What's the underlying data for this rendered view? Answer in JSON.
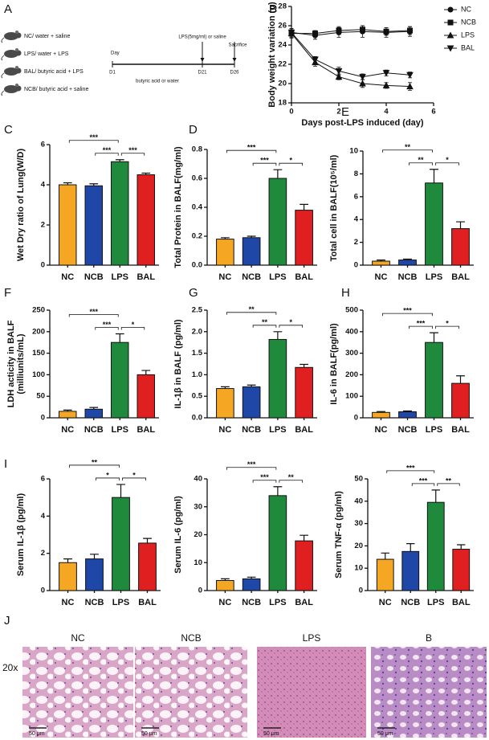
{
  "schematic": {
    "panel": "A",
    "groups": [
      "NC/ water + saline",
      "LPS/ water + LPS",
      "BAL/ butyric acid + LPS",
      "NCB/ butyric acid + saline"
    ],
    "day": "Day",
    "days": [
      "D1",
      "D21",
      "D26"
    ],
    "injection": "LPS(5mg/ml) or saline",
    "sacrifice": "Sacrifice",
    "treatment": "butyric acid or water"
  },
  "chart_data": [
    {
      "type": "line",
      "panel": "B",
      "xlabel": "Days post-LPS induced (day)",
      "ylabel": "Body weight variation (g)",
      "x": [
        0,
        1,
        2,
        3,
        4,
        5
      ],
      "xlim": [
        0,
        6
      ],
      "xticks": [
        0,
        2,
        4,
        6
      ],
      "ylim": [
        18,
        28
      ],
      "yticks": [
        18,
        20,
        22,
        24,
        26,
        28
      ],
      "legend": "right",
      "series": [
        {
          "name": "NC",
          "marker": "circle",
          "color": "#111111",
          "values": [
            25.3,
            25.0,
            25.3,
            25.4,
            25.3,
            25.4
          ],
          "errors": [
            0.4,
            0.4,
            0.5,
            0.6,
            0.5,
            0.5
          ]
        },
        {
          "name": "NCB",
          "marker": "square",
          "color": "#111111",
          "values": [
            25.2,
            25.2,
            25.5,
            25.6,
            25.4,
            25.5
          ],
          "errors": [
            0.4,
            0.3,
            0.4,
            0.4,
            0.4,
            0.4
          ]
        },
        {
          "name": "LPS",
          "marker": "triangle-up",
          "color": "#111111",
          "values": [
            25.2,
            22.2,
            20.7,
            20.0,
            19.8,
            19.7
          ],
          "errors": [
            0.5,
            0.4,
            0.3,
            0.4,
            0.3,
            0.4
          ]
        },
        {
          "name": "BAL",
          "marker": "triangle-down",
          "color": "#111111",
          "values": [
            25.3,
            22.5,
            21.3,
            20.7,
            21.1,
            20.9
          ],
          "errors": [
            0.4,
            0.3,
            0.4,
            0.3,
            0.3,
            0.3
          ]
        }
      ]
    },
    {
      "type": "bar",
      "panel": "C",
      "ylabel": "Wet Dry ratio of Lung(W/D)",
      "categories": [
        "NC",
        "NCB",
        "LPS",
        "BAL"
      ],
      "colors": [
        "#f5a623",
        "#1f47a8",
        "#1f8a3c",
        "#e02020"
      ],
      "values": [
        4.0,
        3.95,
        5.15,
        4.5
      ],
      "errors": [
        0.1,
        0.1,
        0.1,
        0.08
      ],
      "ylim": [
        0,
        6
      ],
      "yticks": [
        0,
        2,
        4,
        6
      ],
      "brackets": [
        {
          "between": [
            "NC",
            "LPS"
          ],
          "label": "***"
        },
        {
          "between": [
            "NCB",
            "LPS"
          ],
          "label": "***"
        },
        {
          "between": [
            "LPS",
            "BAL"
          ],
          "label": "***"
        }
      ]
    },
    {
      "type": "bar",
      "panel": "D",
      "ylabel": "Total Protein in BALF(mg/ml)",
      "categories": [
        "NC",
        "NCB",
        "LPS",
        "BAL"
      ],
      "colors": [
        "#f5a623",
        "#1f47a8",
        "#1f8a3c",
        "#e02020"
      ],
      "values": [
        0.18,
        0.19,
        0.6,
        0.38
      ],
      "errors": [
        0.01,
        0.01,
        0.06,
        0.04
      ],
      "ylim": [
        0,
        0.8
      ],
      "yticks": [
        {
          "value": 0,
          "label": "0.0"
        },
        0.2,
        0.4,
        0.6,
        0.8
      ],
      "brackets": [
        {
          "between": [
            "NC",
            "LPS"
          ],
          "label": "***"
        },
        {
          "between": [
            "NCB",
            "LPS"
          ],
          "label": "***"
        },
        {
          "between": [
            "LPS",
            "BAL"
          ],
          "label": "*"
        }
      ]
    },
    {
      "type": "bar",
      "panel": "E",
      "ylabel": "Total cell in BALF(10⁵/ml)",
      "categories": [
        "NC",
        "NCB",
        "LPS",
        "BAL"
      ],
      "colors": [
        "#f5a623",
        "#1f47a8",
        "#1f8a3c",
        "#e02020"
      ],
      "values": [
        0.35,
        0.45,
        7.2,
        3.2
      ],
      "errors": [
        0.1,
        0.08,
        1.2,
        0.6
      ],
      "ylim": [
        0,
        10
      ],
      "yticks": [
        0,
        2,
        4,
        6,
        8,
        10
      ],
      "brackets": [
        {
          "between": [
            "NC",
            "LPS"
          ],
          "label": "**"
        },
        {
          "between": [
            "NCB",
            "LPS"
          ],
          "label": "**"
        },
        {
          "between": [
            "LPS",
            "BAL"
          ],
          "label": "*"
        }
      ]
    },
    {
      "type": "bar",
      "panel": "F",
      "ylabel": [
        "LDH acticity in BALF",
        "(milliunits/mL)"
      ],
      "categories": [
        "NC",
        "NCB",
        "LPS",
        "BAL"
      ],
      "colors": [
        "#f5a623",
        "#1f47a8",
        "#1f8a3c",
        "#e02020"
      ],
      "values": [
        15,
        20,
        175,
        100
      ],
      "errors": [
        3,
        4,
        20,
        10
      ],
      "ylim": [
        0,
        250
      ],
      "yticks": [
        0,
        50,
        100,
        150,
        200,
        250
      ],
      "brackets": [
        {
          "between": [
            "NC",
            "LPS"
          ],
          "label": "***"
        },
        {
          "between": [
            "NCB",
            "LPS"
          ],
          "label": "***"
        },
        {
          "between": [
            "LPS",
            "BAL"
          ],
          "label": "*"
        }
      ]
    },
    {
      "type": "bar",
      "panel": "G",
      "ylabel": "IL-1β in BALF (pg/ml)",
      "categories": [
        "NC",
        "NCB",
        "LPS",
        "BAL"
      ],
      "colors": [
        "#f5a623",
        "#1f47a8",
        "#1f8a3c",
        "#e02020"
      ],
      "values": [
        0.68,
        0.72,
        1.82,
        1.17
      ],
      "errors": [
        0.04,
        0.04,
        0.18,
        0.07
      ],
      "ylim": [
        0,
        2.5
      ],
      "yticks": [
        {
          "value": 0,
          "label": "0.0"
        },
        0.5,
        {
          "value": 1,
          "label": "1.0"
        },
        1.5,
        {
          "value": 2,
          "label": "2.0"
        },
        2.5
      ],
      "brackets": [
        {
          "between": [
            "NC",
            "LPS"
          ],
          "label": "**"
        },
        {
          "between": [
            "NCB",
            "LPS"
          ],
          "label": "**"
        },
        {
          "between": [
            "LPS",
            "BAL"
          ],
          "label": "*"
        }
      ]
    },
    {
      "type": "bar",
      "panel": "H",
      "ylabel": "IL-6 in BALF(pg/ml)",
      "categories": [
        "NC",
        "NCB",
        "LPS",
        "BAL"
      ],
      "colors": [
        "#f5a623",
        "#1f47a8",
        "#1f8a3c",
        "#e02020"
      ],
      "values": [
        25,
        28,
        350,
        160
      ],
      "errors": [
        4,
        4,
        45,
        35
      ],
      "ylim": [
        0,
        500
      ],
      "yticks": [
        0,
        100,
        200,
        300,
        400,
        500
      ],
      "brackets": [
        {
          "between": [
            "NC",
            "LPS"
          ],
          "label": "***"
        },
        {
          "between": [
            "NCB",
            "LPS"
          ],
          "label": "***"
        },
        {
          "between": [
            "LPS",
            "BAL"
          ],
          "label": "*"
        }
      ]
    },
    {
      "type": "bar",
      "panel": "I",
      "ylabel": "Serum IL-1β (pg/ml)",
      "categories": [
        "NC",
        "NCB",
        "LPS",
        "BAL"
      ],
      "colors": [
        "#f5a623",
        "#1f47a8",
        "#1f8a3c",
        "#e02020"
      ],
      "values": [
        1.5,
        1.7,
        5.0,
        2.55
      ],
      "errors": [
        0.2,
        0.25,
        0.7,
        0.25
      ],
      "ylim": [
        0,
        6
      ],
      "yticks": [
        0,
        2,
        4,
        6
      ],
      "brackets": [
        {
          "between": [
            "NC",
            "LPS"
          ],
          "label": "**"
        },
        {
          "between": [
            "NCB",
            "LPS"
          ],
          "label": "*"
        },
        {
          "between": [
            "LPS",
            "BAL"
          ],
          "label": "*"
        }
      ]
    },
    {
      "type": "bar",
      "ylabel": "Serum IL-6 (pg/ml)",
      "categories": [
        "NC",
        "NCB",
        "LPS",
        "BAL"
      ],
      "colors": [
        "#f5a623",
        "#1f47a8",
        "#1f8a3c",
        "#e02020"
      ],
      "values": [
        3.6,
        4.2,
        34,
        17.8
      ],
      "errors": [
        0.6,
        0.6,
        3.2,
        2
      ],
      "ylim": [
        0,
        40
      ],
      "yticks": [
        0,
        10,
        20,
        30,
        40
      ],
      "brackets": [
        {
          "between": [
            "NC",
            "LPS"
          ],
          "label": "***"
        },
        {
          "between": [
            "NCB",
            "LPS"
          ],
          "label": "***"
        },
        {
          "between": [
            "LPS",
            "BAL"
          ],
          "label": "**"
        }
      ]
    },
    {
      "type": "bar",
      "ylabel": "Serum TNF-α (pg/ml)",
      "categories": [
        "NC",
        "NCB",
        "LPS",
        "BAL"
      ],
      "colors": [
        "#f5a623",
        "#1f47a8",
        "#1f8a3c",
        "#e02020"
      ],
      "values": [
        14,
        17.5,
        39.5,
        18.5
      ],
      "errors": [
        2.8,
        3.5,
        5.5,
        2
      ],
      "ylim": [
        0,
        50
      ],
      "yticks": [
        0,
        10,
        20,
        30,
        40,
        50
      ],
      "brackets": [
        {
          "between": [
            "NC",
            "LPS"
          ],
          "label": "***"
        },
        {
          "between": [
            "NCB",
            "LPS"
          ],
          "label": "***"
        },
        {
          "between": [
            "LPS",
            "BAL"
          ],
          "label": "**"
        }
      ]
    }
  ],
  "histology": {
    "panel": "J",
    "magnification": "20x",
    "images": [
      {
        "label": "NC",
        "scale": "50 μm"
      },
      {
        "label": "NCB",
        "scale": "50 μm"
      },
      {
        "label": "LPS",
        "scale": "50 μm"
      },
      {
        "label": "B",
        "scale": "50 μm"
      }
    ]
  }
}
